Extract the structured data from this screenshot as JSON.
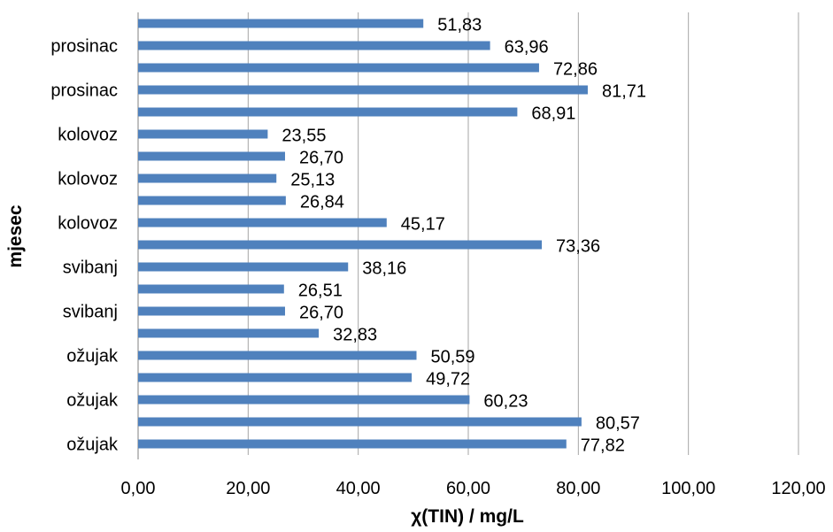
{
  "chart_data": {
    "type": "bar",
    "orientation": "horizontal",
    "xlabel": "χ(TIN) / mg/L",
    "ylabel": "mjesec",
    "xlim": [
      0,
      120
    ],
    "x_ticks": [
      "0,00",
      "20,00",
      "40,00",
      "60,00",
      "80,00",
      "100,00",
      "120,00"
    ],
    "grid": "vertical",
    "legend": "none",
    "bar_color": "#4f81bd",
    "categories": [
      "ožujak",
      "",
      "ožujak",
      "",
      "ožujak",
      "",
      "svibanj",
      "",
      "svibanj",
      "",
      "kolovoz",
      "",
      "kolovoz",
      "",
      "kolovoz",
      "",
      "prosinac",
      "",
      "prosinac",
      ""
    ],
    "values": [
      77.82,
      80.57,
      60.23,
      49.72,
      50.59,
      32.83,
      26.7,
      26.51,
      38.16,
      73.36,
      45.17,
      26.84,
      25.13,
      26.7,
      23.55,
      68.91,
      81.71,
      72.86,
      63.96,
      51.83
    ],
    "value_labels": [
      "77,82",
      "80,57",
      "60,23",
      "49,72",
      "50,59",
      "32,83",
      "26,70",
      "26,51",
      "38,16",
      "73,36",
      "45,17",
      "26,84",
      "25,13",
      "26,70",
      "23,55",
      "68,91",
      "81,71",
      "72,86",
      "63,96",
      "51,83"
    ]
  }
}
